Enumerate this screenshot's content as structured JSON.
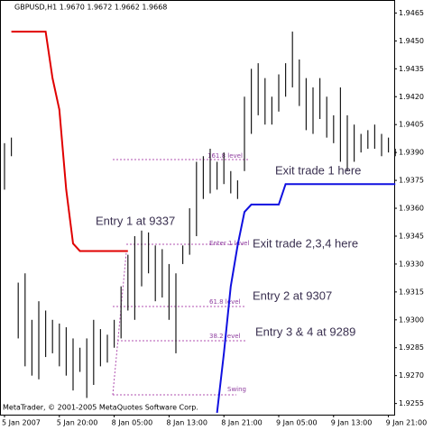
{
  "chart_data": {
    "type": "range-bars",
    "header": "GBPUSD,H1 1.9670 1.9672 1.9662 1.9668",
    "footer": "MetaTrader, © 2001-2005 MetaQuotes Software Corp.",
    "categories": [
      "5 Jan 2007",
      null,
      null,
      null,
      null,
      null,
      null,
      null,
      "5 Jan 20:00",
      null,
      null,
      null,
      null,
      null,
      null,
      null,
      "8 Jan 05:00",
      null,
      null,
      null,
      null,
      null,
      null,
      null,
      "8 Jan 13:00",
      null,
      null,
      null,
      null,
      null,
      null,
      null,
      "8 Jan 21:00",
      null,
      null,
      null,
      null,
      null,
      null,
      null,
      "9 Jan 05:00",
      null,
      null,
      null,
      null,
      null,
      null,
      null,
      "9 Jan 13:00",
      null,
      null,
      null,
      null,
      null,
      null,
      null,
      "9 Jan 21:00",
      null
    ],
    "high": [
      1.9395,
      1.9398,
      1.932,
      1.9325,
      1.93,
      1.931,
      1.9305,
      1.93,
      1.9298,
      1.9296,
      1.929,
      1.9285,
      1.929,
      1.93,
      1.9295,
      1.9292,
      1.93,
      1.9318,
      1.9335,
      1.9345,
      1.9348,
      1.9347,
      1.934,
      1.9338,
      1.933,
      1.9325,
      1.934,
      1.936,
      1.9385,
      1.9388,
      1.9392,
      1.9385,
      1.939,
      1.938,
      1.9375,
      1.942,
      1.9435,
      1.9438,
      1.943,
      1.942,
      1.9432,
      1.9438,
      1.9455,
      1.944,
      1.943,
      1.9425,
      1.943,
      1.942,
      1.941,
      1.9425,
      1.941,
      1.9405,
      1.94,
      1.9402,
      1.9405,
      1.94,
      1.9398,
      1.9392
    ],
    "low": [
      1.937,
      1.9388,
      1.929,
      1.9275,
      1.927,
      1.9268,
      1.928,
      1.9282,
      1.9275,
      1.927,
      1.9262,
      1.9272,
      1.9258,
      1.9265,
      1.9275,
      1.9277,
      1.9285,
      1.929,
      1.9305,
      1.93,
      1.9318,
      1.9325,
      1.931,
      1.9312,
      1.93,
      1.9282,
      1.933,
      1.9335,
      1.9345,
      1.9365,
      1.9368,
      1.937,
      1.9373,
      1.9368,
      1.9365,
      1.938,
      1.94,
      1.941,
      1.9405,
      1.9405,
      1.9412,
      1.942,
      1.9425,
      1.9415,
      1.9402,
      1.94,
      1.9408,
      1.9398,
      1.9395,
      1.9385,
      1.938,
      1.9385,
      1.939,
      1.9392,
      1.9392,
      1.9388,
      1.939,
      1.9388
    ],
    "bar_color": "#1a1a1a",
    "lines": [
      {
        "color": "#e00000",
        "values": [
          null,
          1.9455,
          1.9455,
          1.9455,
          1.9455,
          1.9455,
          1.9455,
          1.943,
          1.9413,
          1.937,
          1.9341,
          1.9337,
          1.9337,
          1.9337,
          1.9337,
          1.9337,
          1.9337,
          1.9337,
          1.9337,
          null,
          null,
          null,
          null,
          null,
          null,
          null,
          null,
          null,
          null,
          null,
          null,
          null,
          null,
          null,
          null,
          null,
          null,
          null,
          null,
          null,
          null,
          null,
          null,
          null,
          null,
          null,
          null,
          null,
          null,
          null,
          null,
          null,
          null,
          null,
          null,
          null,
          null,
          null
        ]
      },
      {
        "color": "#1010e0",
        "values": [
          null,
          null,
          null,
          null,
          null,
          null,
          null,
          null,
          null,
          null,
          null,
          null,
          null,
          null,
          null,
          null,
          null,
          null,
          null,
          null,
          null,
          null,
          null,
          null,
          null,
          null,
          null,
          null,
          null,
          null,
          null,
          1.925,
          1.9282,
          1.9318,
          1.934,
          1.9358,
          1.9362,
          1.9362,
          1.9362,
          1.9362,
          1.9362,
          1.9373,
          1.9373,
          1.9373,
          1.9373,
          1.9373,
          1.9373,
          1.9373,
          1.9373,
          1.9373,
          1.9373,
          1.9373,
          1.9373,
          1.9373,
          1.9373,
          1.9373,
          1.9373,
          1.9373
        ]
      }
    ],
    "ylim": [
      1.9249,
      1.9472
    ],
    "yticks": [
      1.9465,
      {
        "value": 1.945,
        "label": "1.9450"
      },
      1.9435,
      {
        "value": 1.942,
        "label": "1.9420"
      },
      1.9405,
      {
        "value": 1.939,
        "label": "1.9390"
      },
      1.9375,
      {
        "value": 1.936,
        "label": "1.9360"
      },
      1.9345,
      {
        "value": 1.933,
        "label": "1.9330"
      },
      1.9315,
      {
        "value": 1.93,
        "label": "1.9300"
      },
      1.9285,
      {
        "value": 1.927,
        "label": "1.9270"
      },
      1.9255
    ],
    "annotations": [
      "Entry 1 at 9337",
      "Exit trade 1 here",
      "Exit trade 2,3,4 here",
      "Entry 2 at 9307",
      "Entry 3 & 4 at 9289"
    ],
    "level_labels": [
      "161.8 level",
      "Enter 1 level",
      "61.8 level",
      "38.2 level",
      "Swing"
    ]
  }
}
